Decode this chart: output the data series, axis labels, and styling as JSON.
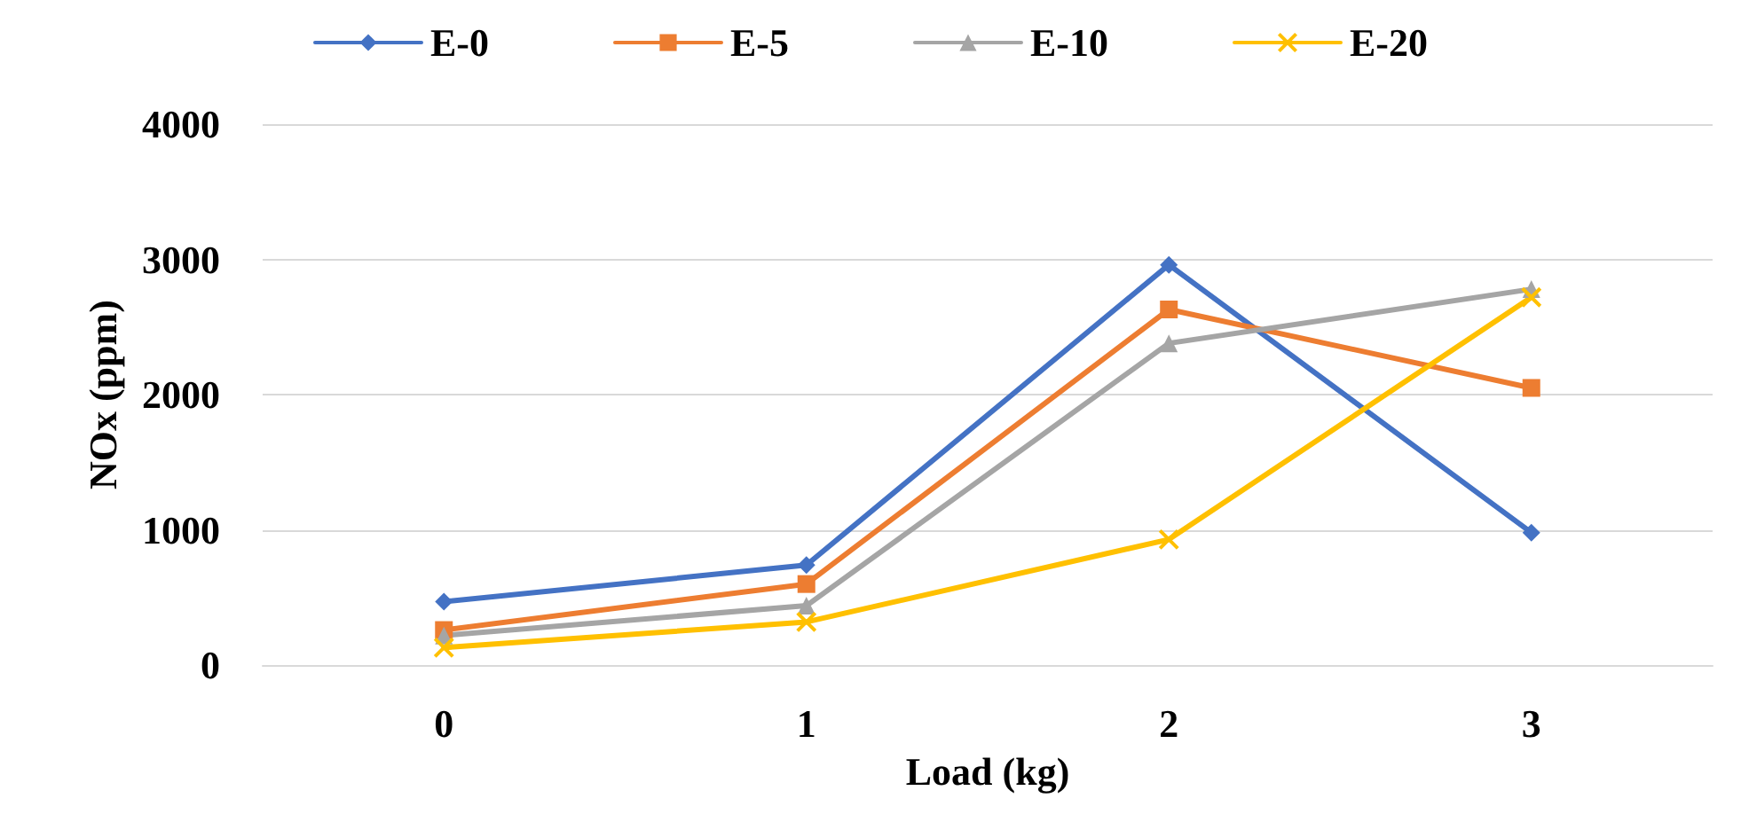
{
  "chart_data": {
    "type": "line",
    "xlabel": "Load (kg)",
    "ylabel": "NOx (ppm)",
    "categories": [
      "0",
      "1",
      "2",
      "3"
    ],
    "series": [
      {
        "name": "E-0",
        "color": "#4472c4",
        "marker": "diamond",
        "values": [
          470,
          740,
          2960,
          980
        ]
      },
      {
        "name": "E-5",
        "color": "#ed7d31",
        "marker": "square",
        "values": [
          260,
          600,
          2630,
          2050
        ]
      },
      {
        "name": "E-10",
        "color": "#a5a5a5",
        "marker": "triangle",
        "values": [
          220,
          440,
          2380,
          2780
        ]
      },
      {
        "name": "E-20",
        "color": "#ffc000",
        "marker": "cross",
        "values": [
          130,
          320,
          930,
          2720
        ]
      }
    ],
    "ylim": [
      0,
      4000
    ],
    "yticks": [
      0,
      1000,
      2000,
      3000,
      4000
    ],
    "grid": "y",
    "legend": "top",
    "line_style": "solid"
  }
}
